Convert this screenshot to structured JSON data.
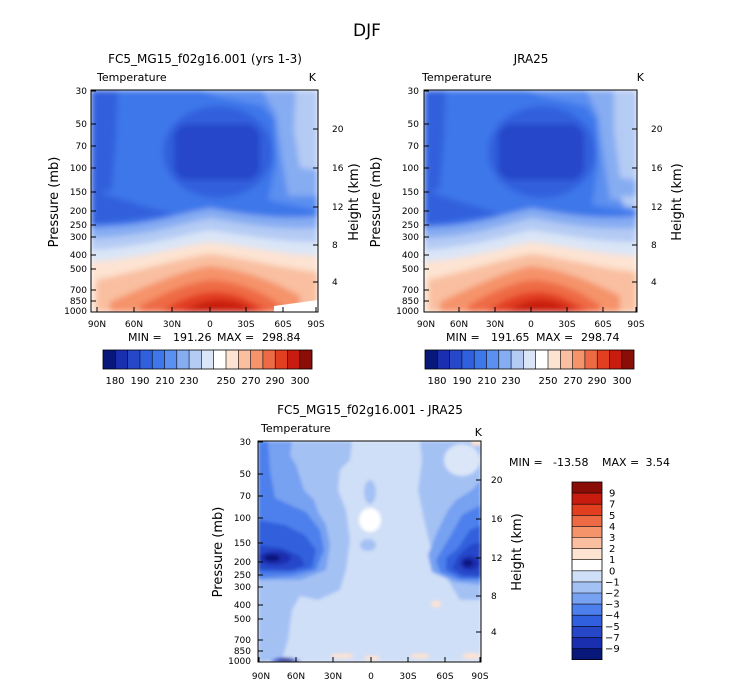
{
  "page_title": "DJF",
  "chart_data": [
    {
      "type": "heatmap",
      "title": "FC5_MG15_f02g16.001 (yrs 1-3)",
      "subtitle_left": "Temperature",
      "subtitle_right": "K",
      "xlabel": "",
      "ylabel": "Pressure (mb)",
      "ylabel_right": "Height (km)",
      "x_ticks": [
        "90N",
        "60N",
        "30N",
        "0",
        "30S",
        "60S",
        "90S"
      ],
      "y_ticks": [
        "30",
        "50",
        "70",
        "100",
        "150",
        "200",
        "250",
        "300",
        "400",
        "500",
        "700",
        "850",
        "1000"
      ],
      "y_right_ticks": [
        "20",
        "16",
        "12",
        "8",
        "4"
      ],
      "xlim": [
        90,
        -90
      ],
      "ylim": [
        1000,
        30
      ],
      "yscale": "log",
      "stats": {
        "min_label": "MIN =",
        "min": "191.26",
        "max_label": "MAX =",
        "max": "298.84"
      },
      "units": "K",
      "colorbar": {
        "orientation": "horizontal",
        "labels": [
          "180",
          "190",
          "210",
          "230",
          "250",
          "270",
          "290",
          "300"
        ]
      }
    },
    {
      "type": "heatmap",
      "title": "JRA25",
      "subtitle_left": "Temperature",
      "subtitle_right": "K",
      "xlabel": "",
      "ylabel": "Pressure (mb)",
      "ylabel_right": "Height (km)",
      "x_ticks": [
        "90N",
        "60N",
        "30N",
        "0",
        "30S",
        "60S",
        "90S"
      ],
      "y_ticks": [
        "30",
        "50",
        "70",
        "100",
        "150",
        "200",
        "250",
        "300",
        "400",
        "500",
        "700",
        "850",
        "1000"
      ],
      "y_right_ticks": [
        "20",
        "16",
        "12",
        "8",
        "4"
      ],
      "xlim": [
        90,
        -90
      ],
      "ylim": [
        1000,
        30
      ],
      "yscale": "log",
      "stats": {
        "min_label": "MIN =",
        "min": "191.65",
        "max_label": "MAX =",
        "max": "298.74"
      },
      "units": "K",
      "colorbar": {
        "orientation": "horizontal",
        "labels": [
          "180",
          "190",
          "210",
          "230",
          "250",
          "270",
          "290",
          "300"
        ]
      }
    },
    {
      "type": "heatmap",
      "title": "FC5_MG15_f02g16.001 - JRA25",
      "subtitle_left": "Temperature",
      "subtitle_right": "K",
      "xlabel": "",
      "ylabel": "Pressure (mb)",
      "ylabel_right": "Height (km)",
      "x_ticks": [
        "90N",
        "60N",
        "30N",
        "0",
        "30S",
        "60S",
        "90S"
      ],
      "y_ticks": [
        "30",
        "50",
        "70",
        "100",
        "150",
        "200",
        "250",
        "300",
        "400",
        "500",
        "700",
        "850",
        "1000"
      ],
      "y_right_ticks": [
        "20",
        "16",
        "12",
        "8",
        "4"
      ],
      "xlim": [
        90,
        -90
      ],
      "ylim": [
        1000,
        30
      ],
      "yscale": "log",
      "stats": {
        "min_label": "MIN =",
        "min": "-13.58",
        "max_label": "MAX =",
        "max": "3.54"
      },
      "units": "K",
      "colorbar": {
        "orientation": "vertical",
        "labels": [
          "9",
          "7",
          "5",
          "4",
          "3",
          "2",
          "1",
          "0",
          "−1",
          "−2",
          "−3",
          "−4",
          "−5",
          "−7",
          "−9"
        ]
      }
    }
  ],
  "colors": {
    "temperature_scale": [
      "#08177a",
      "#1a2fb0",
      "#2747c9",
      "#3060dd",
      "#3e77ea",
      "#5b8ff0",
      "#86acf2",
      "#b4cbf4",
      "#dae5f7",
      "#ffffff",
      "#fde3d2",
      "#f9bfa0",
      "#f5936b",
      "#ee6a44",
      "#e23e20",
      "#c81c0f",
      "#8b0d07"
    ],
    "difference_scale": [
      "#08177a",
      "#1a2fb0",
      "#2747c9",
      "#3060dd",
      "#4d80ec",
      "#77a1f1",
      "#a4c1f4",
      "#cfdff7",
      "#ffffff",
      "#fde3d2",
      "#f9bfa0",
      "#f5936b",
      "#ee6a44",
      "#e23e20",
      "#c81c0f",
      "#8b0d07"
    ]
  }
}
